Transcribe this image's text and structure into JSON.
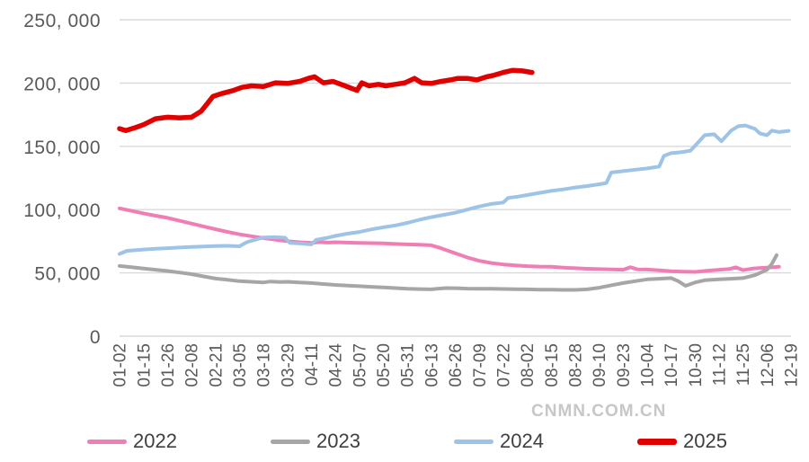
{
  "watermark": "CNMN.COM.CN",
  "chart_data": {
    "type": "line",
    "title": "",
    "xlabel": "",
    "ylabel": "",
    "x_tick_labels": [
      "01-02",
      "01-15",
      "01-26",
      "02-08",
      "02-21",
      "03-05",
      "03-18",
      "03-29",
      "04-11",
      "04-24",
      "05-07",
      "05-20",
      "05-31",
      "06-13",
      "06-26",
      "07-09",
      "07-22",
      "08-02",
      "08-15",
      "08-28",
      "09-10",
      "09-23",
      "10-04",
      "10-17",
      "10-30",
      "11-12",
      "11-25",
      "12-06",
      "12-19"
    ],
    "y_ticks": [
      0,
      50000,
      100000,
      150000,
      200000,
      250000
    ],
    "y_tick_labels": [
      "0",
      "50, 000",
      "100, 000",
      "150, 000",
      "200, 000",
      "250, 000"
    ],
    "ylim": [
      0,
      250000
    ],
    "grid": "horizontal",
    "gridline_color": "#d9d9d9",
    "axis_text_color": "#595959",
    "legend_position": "bottom",
    "series": [
      {
        "name": "2022",
        "color": "#f07eb5",
        "stroke_width": 4,
        "points": [
          [
            0,
            101000
          ],
          [
            0.5,
            99000
          ],
          [
            1,
            97000
          ],
          [
            1.5,
            95200
          ],
          [
            2,
            93500
          ],
          [
            2.5,
            91200
          ],
          [
            3,
            89000
          ],
          [
            3.5,
            86700
          ],
          [
            4,
            84500
          ],
          [
            4.5,
            82400
          ],
          [
            5,
            80500
          ],
          [
            5.5,
            79000
          ],
          [
            6,
            77500
          ],
          [
            6.5,
            76200
          ],
          [
            7,
            75000
          ],
          [
            7.5,
            74200
          ],
          [
            8,
            73700
          ],
          [
            8.3,
            74300
          ],
          [
            8.7,
            73900
          ],
          [
            9,
            74200
          ],
          [
            9.5,
            73900
          ],
          [
            10,
            73700
          ],
          [
            10.5,
            73500
          ],
          [
            11,
            73300
          ],
          [
            11.5,
            72900
          ],
          [
            12,
            72500
          ],
          [
            12.5,
            72200
          ],
          [
            13,
            71800
          ],
          [
            13.4,
            69500
          ],
          [
            13.7,
            67500
          ],
          [
            14,
            65500
          ],
          [
            14.5,
            62200
          ],
          [
            15,
            59500
          ],
          [
            15.5,
            57800
          ],
          [
            16,
            56700
          ],
          [
            16.5,
            55900
          ],
          [
            17,
            55300
          ],
          [
            17.5,
            55000
          ],
          [
            18,
            54800
          ],
          [
            18.5,
            54200
          ],
          [
            19,
            53700
          ],
          [
            19.5,
            53300
          ],
          [
            20,
            53000
          ],
          [
            20.5,
            52700
          ],
          [
            21,
            52500
          ],
          [
            21.3,
            54500
          ],
          [
            21.6,
            52800
          ],
          [
            22,
            52600
          ],
          [
            22.5,
            52000
          ],
          [
            23,
            51300
          ],
          [
            23.5,
            51000
          ],
          [
            24,
            50800
          ],
          [
            24.5,
            51600
          ],
          [
            25,
            52500
          ],
          [
            25.4,
            53000
          ],
          [
            25.7,
            54400
          ],
          [
            26,
            52200
          ],
          [
            26.4,
            53400
          ],
          [
            26.8,
            54000
          ],
          [
            27.2,
            54400
          ],
          [
            27.5,
            54800
          ]
        ]
      },
      {
        "name": "2023",
        "color": "#a6a6a6",
        "stroke_width": 4,
        "points": [
          [
            0,
            55500
          ],
          [
            0.5,
            54500
          ],
          [
            1,
            53500
          ],
          [
            1.5,
            52500
          ],
          [
            2,
            51500
          ],
          [
            2.5,
            50300
          ],
          [
            3,
            49000
          ],
          [
            3.5,
            47200
          ],
          [
            4,
            45500
          ],
          [
            4.5,
            44500
          ],
          [
            5,
            43500
          ],
          [
            5.5,
            43000
          ],
          [
            6,
            42500
          ],
          [
            6.3,
            43200
          ],
          [
            6.7,
            42800
          ],
          [
            7,
            43000
          ],
          [
            7.5,
            42500
          ],
          [
            8,
            42000
          ],
          [
            8.5,
            41200
          ],
          [
            9,
            40500
          ],
          [
            9.5,
            40000
          ],
          [
            10,
            39500
          ],
          [
            10.5,
            39000
          ],
          [
            11,
            38500
          ],
          [
            11.5,
            38000
          ],
          [
            12,
            37500
          ],
          [
            12.5,
            37200
          ],
          [
            13,
            37000
          ],
          [
            13.3,
            37600
          ],
          [
            13.6,
            38000
          ],
          [
            14,
            37900
          ],
          [
            14.5,
            37600
          ],
          [
            15,
            37500
          ],
          [
            15.5,
            37400
          ],
          [
            16,
            37300
          ],
          [
            16.5,
            37100
          ],
          [
            17,
            37000
          ],
          [
            17.5,
            36800
          ],
          [
            18,
            36700
          ],
          [
            18.5,
            36600
          ],
          [
            19,
            36600
          ],
          [
            19.5,
            37000
          ],
          [
            20,
            38300
          ],
          [
            20.5,
            40200
          ],
          [
            21,
            42000
          ],
          [
            21.5,
            43500
          ],
          [
            22,
            44900
          ],
          [
            22.5,
            45400
          ],
          [
            23,
            45900
          ],
          [
            23.3,
            43500
          ],
          [
            23.6,
            39800
          ],
          [
            24,
            42500
          ],
          [
            24.4,
            44200
          ],
          [
            25,
            44900
          ],
          [
            25.5,
            45400
          ],
          [
            26,
            45900
          ],
          [
            26.5,
            48200
          ],
          [
            27,
            52500
          ],
          [
            27.2,
            57200
          ],
          [
            27.4,
            64000
          ]
        ]
      },
      {
        "name": "2024",
        "color": "#9dc3e6",
        "stroke_width": 4,
        "points": [
          [
            0,
            65000
          ],
          [
            0.3,
            67400
          ],
          [
            0.7,
            68000
          ],
          [
            1,
            68500
          ],
          [
            1.5,
            69000
          ],
          [
            2,
            69500
          ],
          [
            2.5,
            70000
          ],
          [
            3,
            70500
          ],
          [
            3.5,
            70800
          ],
          [
            4,
            71200
          ],
          [
            4.5,
            71400
          ],
          [
            5,
            71000
          ],
          [
            5.3,
            74200
          ],
          [
            5.7,
            76500
          ],
          [
            6,
            78000
          ],
          [
            6.5,
            78200
          ],
          [
            6.9,
            77800
          ],
          [
            7.1,
            73700
          ],
          [
            7.5,
            73300
          ],
          [
            8,
            72500
          ],
          [
            8.2,
            76100
          ],
          [
            8.6,
            77500
          ],
          [
            9,
            79200
          ],
          [
            9.5,
            81000
          ],
          [
            10,
            82300
          ],
          [
            10.5,
            84400
          ],
          [
            11,
            86000
          ],
          [
            11.5,
            87500
          ],
          [
            12,
            89500
          ],
          [
            12.5,
            92000
          ],
          [
            13,
            94000
          ],
          [
            13.5,
            95800
          ],
          [
            14,
            97500
          ],
          [
            14.5,
            100000
          ],
          [
            15,
            102500
          ],
          [
            15.5,
            104500
          ],
          [
            16,
            105600
          ],
          [
            16.2,
            109200
          ],
          [
            16.6,
            110200
          ],
          [
            17,
            111500
          ],
          [
            17.5,
            113200
          ],
          [
            18,
            114800
          ],
          [
            18.5,
            116000
          ],
          [
            19,
            117500
          ],
          [
            19.5,
            118600
          ],
          [
            20,
            120000
          ],
          [
            20.3,
            121000
          ],
          [
            20.5,
            129300
          ],
          [
            21,
            130400
          ],
          [
            21.5,
            131500
          ],
          [
            22,
            132500
          ],
          [
            22.5,
            134000
          ],
          [
            22.7,
            142500
          ],
          [
            23,
            144600
          ],
          [
            23.4,
            145300
          ],
          [
            23.8,
            146500
          ],
          [
            24,
            150500
          ],
          [
            24.4,
            158800
          ],
          [
            24.8,
            159500
          ],
          [
            25.1,
            154000
          ],
          [
            25.5,
            162400
          ],
          [
            25.8,
            165900
          ],
          [
            26.1,
            166500
          ],
          [
            26.5,
            163800
          ],
          [
            26.7,
            160200
          ],
          [
            27,
            158800
          ],
          [
            27.2,
            162400
          ],
          [
            27.5,
            161300
          ],
          [
            27.9,
            162200
          ]
        ]
      },
      {
        "name": "2025",
        "color": "#e00000",
        "stroke_width": 5.5,
        "points": [
          [
            0,
            164000
          ],
          [
            0.26,
            162400
          ],
          [
            0.64,
            164700
          ],
          [
            1,
            167100
          ],
          [
            1.5,
            171800
          ],
          [
            2,
            173000
          ],
          [
            2.5,
            172500
          ],
          [
            3,
            173000
          ],
          [
            3.4,
            177700
          ],
          [
            3.65,
            183600
          ],
          [
            3.9,
            189500
          ],
          [
            4.3,
            191900
          ],
          [
            4.75,
            194200
          ],
          [
            5.1,
            196600
          ],
          [
            5.5,
            197800
          ],
          [
            6,
            197300
          ],
          [
            6.5,
            200200
          ],
          [
            7,
            199700
          ],
          [
            7.5,
            201300
          ],
          [
            7.87,
            203700
          ],
          [
            8.13,
            205000
          ],
          [
            8.5,
            200200
          ],
          [
            8.9,
            201300
          ],
          [
            9.4,
            197800
          ],
          [
            9.9,
            194200
          ],
          [
            10.1,
            200200
          ],
          [
            10.4,
            197800
          ],
          [
            10.8,
            199000
          ],
          [
            11.1,
            197800
          ],
          [
            11.5,
            199000
          ],
          [
            11.9,
            200200
          ],
          [
            12.3,
            203700
          ],
          [
            12.6,
            200200
          ],
          [
            13,
            199700
          ],
          [
            13.4,
            201300
          ],
          [
            13.8,
            202500
          ],
          [
            14.1,
            203700
          ],
          [
            14.5,
            203700
          ],
          [
            14.9,
            202500
          ],
          [
            15.3,
            204900
          ],
          [
            15.6,
            206100
          ],
          [
            16,
            208400
          ],
          [
            16.4,
            210100
          ],
          [
            16.8,
            209600
          ],
          [
            17.2,
            208400
          ]
        ]
      }
    ]
  }
}
